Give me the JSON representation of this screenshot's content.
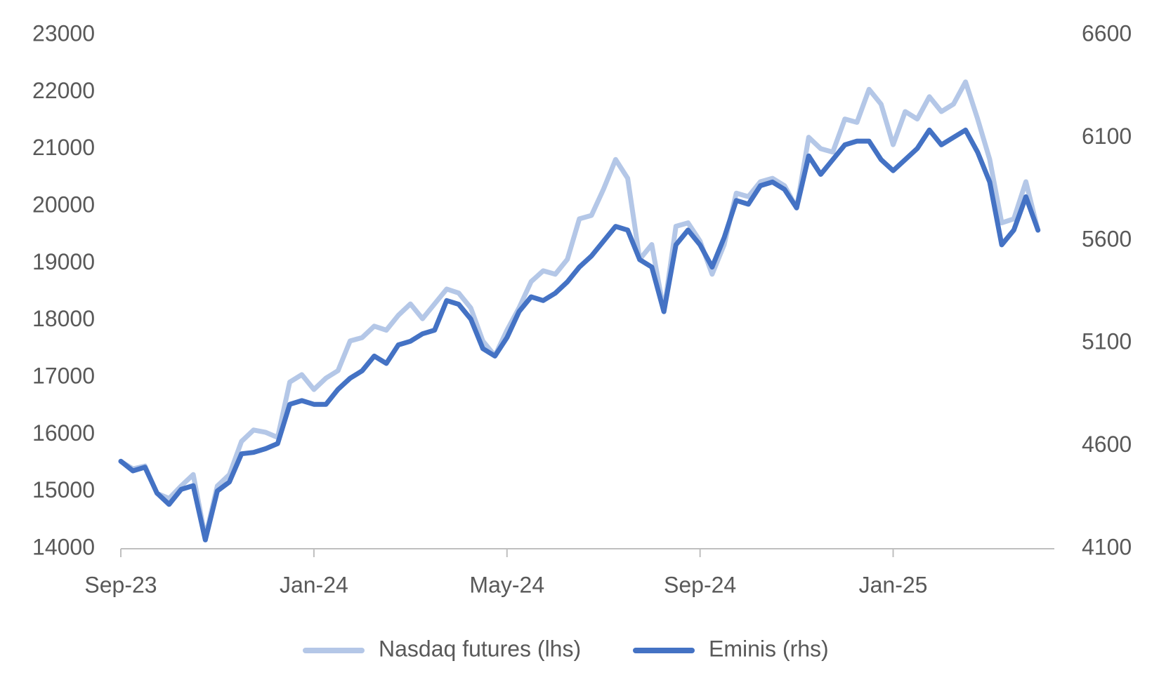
{
  "chart_data": {
    "type": "line",
    "categories": [
      "Sep-23",
      null,
      null,
      null,
      null,
      null,
      null,
      null,
      null,
      null,
      null,
      null,
      null,
      null,
      null,
      null,
      "Jan-24",
      null,
      null,
      null,
      null,
      null,
      null,
      null,
      null,
      null,
      null,
      null,
      null,
      null,
      null,
      null,
      "May-24",
      null,
      null,
      null,
      null,
      null,
      null,
      null,
      null,
      null,
      null,
      null,
      null,
      null,
      null,
      null,
      "Sep-24",
      null,
      null,
      null,
      null,
      null,
      null,
      null,
      null,
      null,
      null,
      null,
      null,
      null,
      null,
      null,
      "Jan-25",
      null,
      null,
      null,
      null,
      null,
      null,
      null,
      null,
      null,
      null,
      null,
      null
    ],
    "series": [
      {
        "name": "Nasdaq futures (lhs)",
        "color": "#b4c7e7",
        "axis": "y",
        "values": [
          15530,
          15400,
          15450,
          14970,
          14880,
          15100,
          15300,
          14190,
          15100,
          15300,
          15880,
          16080,
          16040,
          15950,
          16920,
          17050,
          16790,
          16990,
          17120,
          17640,
          17700,
          17900,
          17830,
          18090,
          18290,
          18030,
          18290,
          18550,
          18480,
          18220,
          17640,
          17380,
          17830,
          18220,
          18680,
          18870,
          18810,
          19070,
          19780,
          19840,
          20300,
          20820,
          20490,
          19070,
          19330,
          18160,
          19650,
          19710,
          19390,
          18810,
          19330,
          20230,
          20170,
          20430,
          20490,
          20360,
          19970,
          21210,
          21010,
          20950,
          21530,
          21470,
          22050,
          21790,
          21080,
          21660,
          21530,
          21920,
          21660,
          21790,
          22180,
          21530,
          20820,
          19710,
          19780,
          20430,
          19580
        ]
      },
      {
        "name": "Eminis (rhs)",
        "color": "#4472c4",
        "axis": "y2",
        "values": [
          4526,
          4479,
          4497,
          4371,
          4316,
          4389,
          4407,
          4143,
          4381,
          4425,
          4562,
          4569,
          4587,
          4612,
          4803,
          4821,
          4803,
          4803,
          4876,
          4930,
          4966,
          5038,
          5002,
          5092,
          5110,
          5146,
          5164,
          5308,
          5290,
          5218,
          5074,
          5038,
          5128,
          5254,
          5326,
          5308,
          5344,
          5399,
          5471,
          5525,
          5597,
          5669,
          5651,
          5507,
          5471,
          5254,
          5579,
          5651,
          5579,
          5471,
          5615,
          5795,
          5777,
          5867,
          5885,
          5849,
          5759,
          6012,
          5922,
          5994,
          6066,
          6084,
          6084,
          5994,
          5940,
          5994,
          6048,
          6138,
          6066,
          6102,
          6138,
          6030,
          5885,
          5579,
          5651,
          5813,
          5651
        ]
      }
    ],
    "ylim": [
      14000,
      23000
    ],
    "yticks": [
      14000,
      15000,
      16000,
      17000,
      18000,
      19000,
      20000,
      21000,
      22000,
      23000
    ],
    "y2lim": [
      4100,
      6600
    ],
    "y2ticks": [
      4100,
      4600,
      5100,
      5600,
      6100,
      6600
    ],
    "grid": false,
    "legend": "bottom"
  }
}
